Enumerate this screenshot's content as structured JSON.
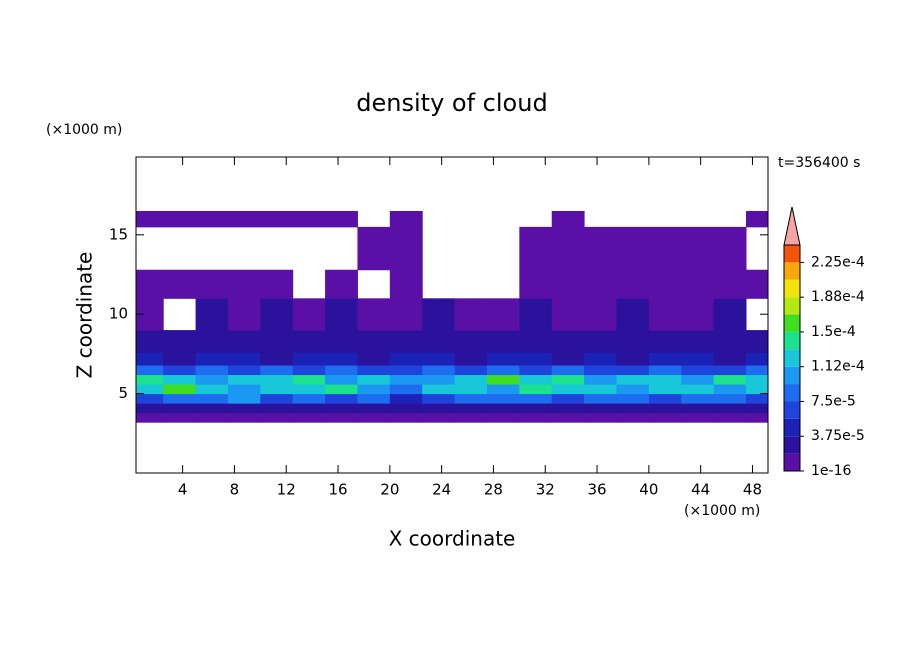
{
  "chart_data": {
    "type": "contour",
    "title": "density of cloud",
    "time_label": "t=356400 s",
    "x_label": "X coordinate",
    "y_label": "Z coordinate",
    "x_unit": "(×1000 m)",
    "y_unit": "(×1000 m)",
    "xlim": [
      0.4,
      49.2
    ],
    "ylim": [
      0,
      19.9
    ],
    "xticks": [
      4,
      8,
      12,
      16,
      20,
      24,
      28,
      32,
      36,
      40,
      44,
      48
    ],
    "yticks": [
      5,
      10,
      15
    ],
    "x_edges": [
      0,
      2.5,
      5,
      7.5,
      10,
      12.5,
      15,
      17.5,
      20,
      22.5,
      25,
      27.5,
      30,
      32.5,
      35,
      37.5,
      40,
      42.5,
      45,
      47.5,
      50
    ],
    "z_edges": [
      3.2,
      3.8,
      4.4,
      5.0,
      5.6,
      6.2,
      6.8,
      7.6,
      9,
      11,
      12.8,
      15.5,
      16.5
    ],
    "values": [
      [
        1e-05,
        1e-05,
        1e-05,
        1e-05,
        1e-05,
        1e-05,
        1e-05,
        1e-05,
        1e-05,
        1e-05,
        1e-05,
        1e-05,
        1e-05,
        1e-05,
        1e-05,
        1e-05,
        1e-05,
        1e-05,
        1e-05,
        1e-05
      ],
      [
        3e-05,
        2e-05,
        3e-05,
        2e-05,
        3e-05,
        2e-05,
        3e-05,
        3e-05,
        2e-05,
        3e-05,
        2e-05,
        3e-05,
        2e-05,
        3e-05,
        3e-05,
        2e-05,
        3e-05,
        2e-05,
        3e-05,
        2e-05
      ],
      [
        7e-05,
        9e-05,
        8e-05,
        0.0001,
        7e-05,
        9e-05,
        6e-05,
        8e-05,
        5e-05,
        7e-05,
        8e-05,
        9e-05,
        8e-05,
        7e-05,
        9e-05,
        8e-05,
        7e-05,
        8e-05,
        9e-05,
        7e-05
      ],
      [
        0.00013,
        0.00015,
        0.00012,
        0.00011,
        0.00013,
        0.00012,
        0.00014,
        0.00011,
        9e-05,
        0.00012,
        0.00013,
        0.00011,
        0.00014,
        0.00012,
        0.00013,
        0.00011,
        0.00012,
        0.00013,
        0.00011,
        0.00012
      ],
      [
        0.00014,
        0.00012,
        0.00011,
        0.00013,
        0.00012,
        0.00014,
        0.00011,
        0.00012,
        0.0001,
        0.00011,
        0.00013,
        0.00015,
        0.00012,
        0.00014,
        0.00011,
        0.00012,
        0.00013,
        0.00011,
        0.00014,
        0.00012
      ],
      [
        9e-05,
        7e-05,
        8e-05,
        6e-05,
        9e-05,
        7e-05,
        8e-05,
        7e-05,
        6e-05,
        8e-05,
        7e-05,
        9e-05,
        6e-05,
        8e-05,
        7e-05,
        6e-05,
        8e-05,
        7e-05,
        6e-05,
        9e-05
      ],
      [
        4e-05,
        3e-05,
        5e-05,
        4e-05,
        3e-05,
        5e-05,
        4e-05,
        3e-05,
        4e-05,
        5e-05,
        3e-05,
        4e-05,
        5e-05,
        3e-05,
        4e-05,
        3e-05,
        5e-05,
        4e-05,
        3e-05,
        4e-05
      ],
      [
        2e-05,
        3e-05,
        2e-05,
        3e-05,
        2e-05,
        2e-05,
        3e-05,
        2e-05,
        3e-05,
        2e-05,
        3e-05,
        2e-05,
        2e-05,
        3e-05,
        2e-05,
        3e-05,
        2e-05,
        2e-05,
        3e-05,
        2e-05
      ],
      [
        1e-05,
        null,
        2e-05,
        1e-05,
        2e-05,
        1e-05,
        2e-05,
        1e-05,
        1e-05,
        2e-05,
        1e-05,
        1e-05,
        2e-05,
        1e-05,
        1e-05,
        2e-05,
        1e-05,
        1e-05,
        2e-05,
        null
      ],
      [
        1e-05,
        1e-05,
        1e-05,
        1e-05,
        1e-05,
        null,
        1e-05,
        null,
        1e-05,
        null,
        null,
        null,
        1e-05,
        1e-05,
        1e-05,
        1e-05,
        1e-05,
        1e-05,
        1e-05,
        1e-05
      ],
      [
        null,
        null,
        null,
        null,
        null,
        null,
        null,
        1e-05,
        1e-05,
        null,
        null,
        null,
        1e-05,
        1e-05,
        1e-05,
        1e-05,
        1e-05,
        1e-05,
        1e-05,
        null
      ],
      [
        1e-05,
        1e-05,
        1e-05,
        1e-05,
        1e-05,
        1e-05,
        1e-05,
        null,
        1e-05,
        null,
        null,
        null,
        null,
        1e-05,
        null,
        null,
        null,
        null,
        null,
        1e-05
      ]
    ],
    "levels": [
      1e-16,
      1.875e-05,
      3.75e-05,
      5.625e-05,
      7.5e-05,
      9.375e-05,
      0.0001125,
      0.00013125,
      0.00015,
      0.00016875,
      0.0001875,
      0.00020625,
      0.000225,
      0.00024375
    ],
    "colors": [
      "#5a10a6",
      "#2a129c",
      "#1c22b8",
      "#1f44dc",
      "#1e6cf0",
      "#1a98f2",
      "#18c8d8",
      "#1ce28e",
      "#40de22",
      "#b4ea12",
      "#f4e40c",
      "#f7a60c",
      "#f3540b"
    ],
    "extend_color": "#f4a6a6",
    "colorbar_ticks": [
      1e-16,
      {
        "value": 3.75e-05,
        "label": "3.75e-5"
      },
      {
        "value": 7.5e-05,
        "label": "7.5e-5"
      },
      {
        "value": 0.0001125,
        "label": "1.12e-4"
      },
      {
        "value": 0.00015,
        "label": "1.5e-4"
      },
      {
        "value": 0.0001875,
        "label": "1.88e-4"
      },
      {
        "value": 0.000225,
        "label": "2.25e-4"
      }
    ]
  }
}
